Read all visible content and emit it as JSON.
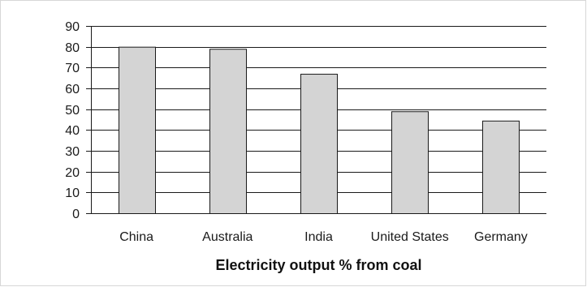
{
  "chart_data": {
    "type": "bar",
    "categories": [
      "China",
      "Australia",
      "India",
      "United States",
      "Germany"
    ],
    "values": [
      80,
      79,
      67,
      49,
      44.5
    ],
    "title": "",
    "xlabel": "Electricity output % from coal",
    "ylabel": "",
    "ylim": [
      0,
      90
    ],
    "yticks": [
      0,
      10,
      20,
      30,
      40,
      50,
      60,
      70,
      80,
      90
    ],
    "grid": true,
    "legend": "none",
    "colors": {
      "bar_fill": "#d4d4d4",
      "bar_stroke": "#1a1a1a",
      "grid": "#1a1a1a",
      "axis": "#1a1a1a"
    }
  }
}
